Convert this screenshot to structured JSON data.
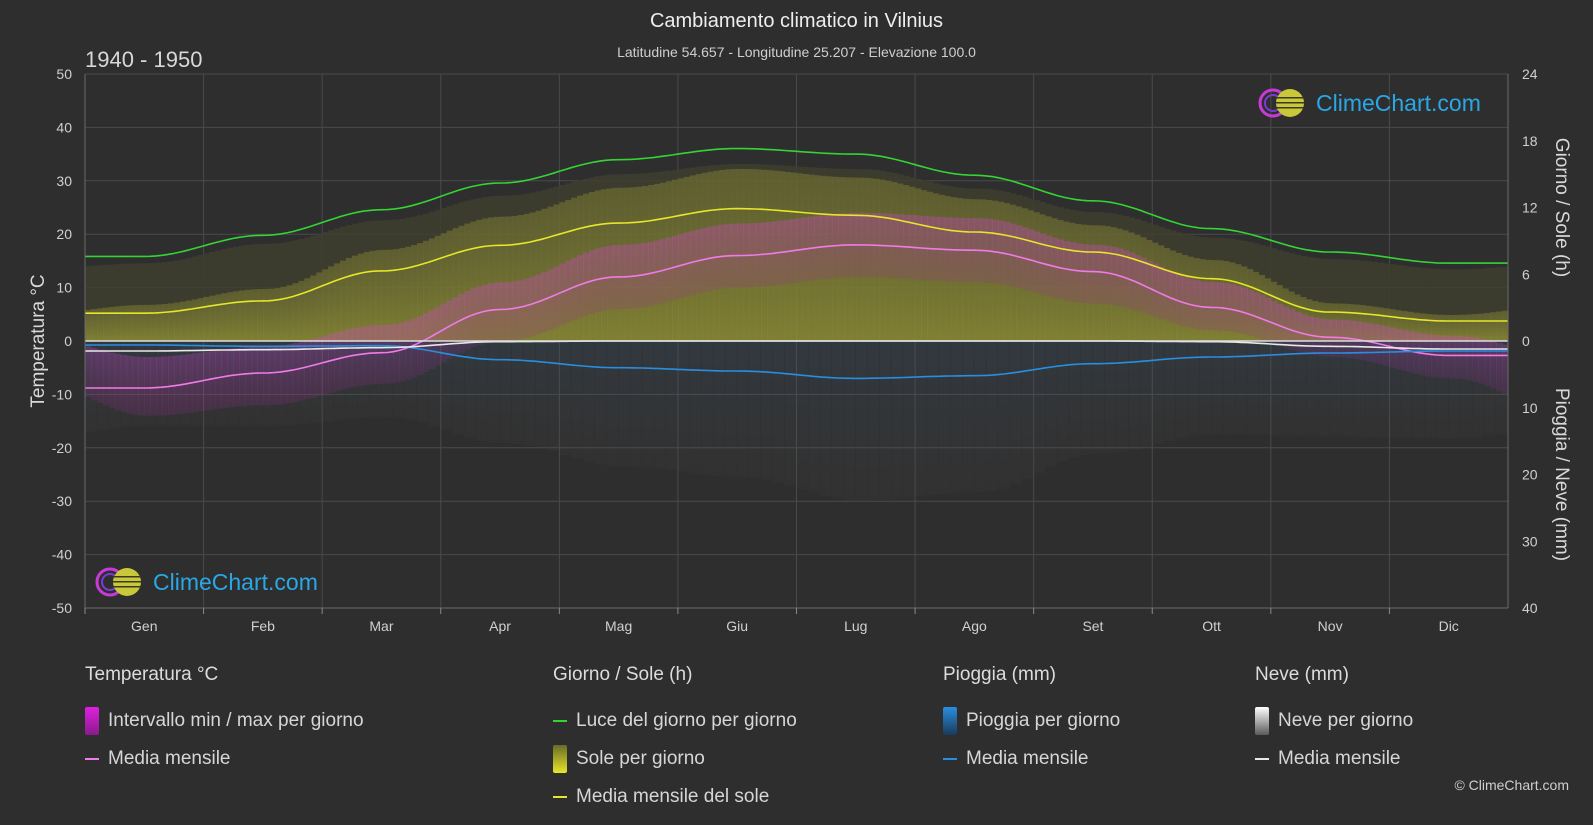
{
  "header": {
    "title": "Cambiamento climatico in Vilnius",
    "subtitle": "Latitudine 54.657 - Longitudine 25.207 - Elevazione 100.0",
    "period": "1940 - 1950"
  },
  "logo_text": "ClimeChart.com",
  "copyright": "© ClimeChart.com",
  "colors": {
    "background": "#2e2e2e",
    "daylight": "#35d435",
    "sun_mean": "#e6e62a",
    "temp_mean": "#f07be8",
    "rain_mean": "#2a8ee0",
    "snow_mean": "#e8e8e8",
    "temp_range": "#d23bc8",
    "sun_bar": "#a8a832",
    "rain_bar": "#2a6ea8",
    "snow_bar": "#9a9a9a",
    "logo": "#29a8e8"
  },
  "chart_data": {
    "type": "line",
    "title": "Cambiamento climatico in Vilnius",
    "months": [
      "Gen",
      "Feb",
      "Mar",
      "Apr",
      "Mag",
      "Giu",
      "Lug",
      "Ago",
      "Set",
      "Ott",
      "Nov",
      "Dic"
    ],
    "left_axis": {
      "label": "Temperatura °C",
      "min": -50,
      "max": 50,
      "ticks": [
        "50",
        "40",
        "30",
        "20",
        "10",
        "0",
        "-10",
        "-20",
        "-30",
        "-40",
        "-50"
      ]
    },
    "right_axis_top": {
      "label": "Giorno / Sole (h)",
      "min": 0,
      "max": 24,
      "ticks": [
        "24",
        "18",
        "12",
        "6",
        "0"
      ]
    },
    "right_axis_bottom": {
      "label": "Pioggia / Neve (mm)",
      "min": 0,
      "max": 40,
      "ticks": [
        "0",
        "10",
        "20",
        "30",
        "40"
      ]
    },
    "grid": true,
    "series": [
      {
        "name": "Luce del giorno per giorno",
        "unit": "h",
        "values": [
          7.6,
          9.5,
          11.8,
          14.2,
          16.3,
          17.3,
          16.8,
          14.9,
          12.6,
          10.1,
          8.0,
          7.0
        ]
      },
      {
        "name": "Media mensile del sole",
        "unit": "h",
        "values": [
          2.5,
          3.6,
          6.3,
          8.6,
          10.6,
          11.9,
          11.3,
          9.8,
          8.0,
          5.6,
          2.6,
          1.8
        ]
      },
      {
        "name": "Media mensile",
        "unit": "°C",
        "values": [
          -8.8,
          -6.0,
          -2.2,
          5.9,
          12.0,
          16.0,
          18.0,
          17.0,
          13.0,
          6.3,
          0.7,
          -2.7
        ]
      },
      {
        "name": "Pioggia media mensile",
        "unit": "mm",
        "values": [
          0.6,
          0.8,
          0.7,
          2.8,
          4.0,
          4.5,
          5.6,
          5.2,
          3.4,
          2.4,
          1.8,
          1.5
        ]
      },
      {
        "name": "Neve media mensile",
        "unit": "mm",
        "values": [
          1.5,
          1.3,
          1.0,
          0.1,
          0.0,
          0.0,
          0.0,
          0.0,
          0.0,
          0.1,
          0.8,
          1.2
        ]
      }
    ],
    "temp_range": {
      "min": [
        -14,
        -12,
        -8,
        0,
        6,
        10,
        12,
        11,
        7,
        2,
        -3,
        -7
      ],
      "max": [
        -3,
        -1,
        3,
        11,
        18,
        22,
        24,
        23,
        18,
        11,
        4,
        1
      ]
    }
  },
  "legend": {
    "temperature": {
      "title": "Temperatura °C",
      "items": [
        "Intervallo min / max per giorno",
        "Media mensile"
      ]
    },
    "sun": {
      "title": "Giorno / Sole (h)",
      "items": [
        "Luce del giorno per giorno",
        "Sole per giorno",
        "Media mensile del sole"
      ]
    },
    "rain": {
      "title": "Pioggia (mm)",
      "items": [
        "Pioggia per giorno",
        "Media mensile"
      ]
    },
    "snow": {
      "title": "Neve (mm)",
      "items": [
        "Neve per giorno",
        "Media mensile"
      ]
    }
  }
}
